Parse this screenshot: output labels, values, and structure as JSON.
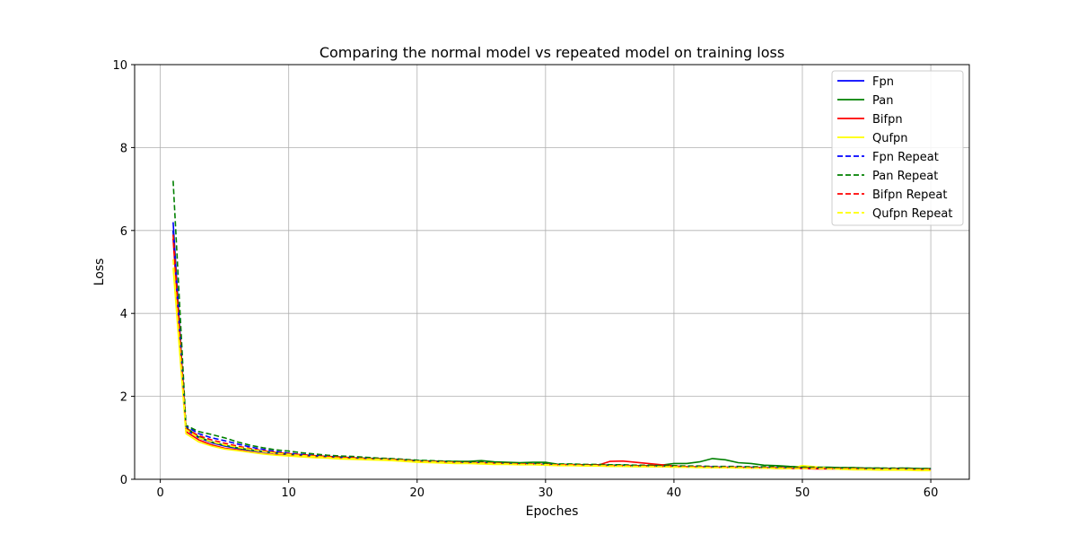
{
  "chart_data": {
    "type": "line",
    "title": "Comparing the normal model vs repeated model on training loss",
    "xlabel": "Epoches",
    "ylabel": "Loss",
    "xlim": [
      -2,
      63
    ],
    "ylim": [
      0,
      10
    ],
    "xticks": [
      0,
      10,
      20,
      30,
      40,
      50,
      60
    ],
    "yticks": [
      0,
      2,
      4,
      6,
      8,
      10
    ],
    "grid": true,
    "legend_position": "top-right",
    "x": [
      1,
      2,
      3,
      4,
      5,
      6,
      7,
      8,
      9,
      10,
      11,
      12,
      13,
      14,
      15,
      16,
      17,
      18,
      19,
      20,
      21,
      22,
      23,
      24,
      25,
      26,
      27,
      28,
      29,
      30,
      31,
      32,
      33,
      34,
      35,
      36,
      37,
      38,
      39,
      40,
      41,
      42,
      43,
      44,
      45,
      46,
      47,
      48,
      49,
      50,
      51,
      52,
      53,
      54,
      55,
      56,
      57,
      58,
      59,
      60
    ],
    "series": [
      {
        "name": "Fpn",
        "color": "#0000ff",
        "dash": "solid",
        "values": [
          6.2,
          1.2,
          1.0,
          0.88,
          0.8,
          0.75,
          0.7,
          0.66,
          0.63,
          0.6,
          0.58,
          0.56,
          0.54,
          0.52,
          0.51,
          0.5,
          0.49,
          0.48,
          0.46,
          0.44,
          0.43,
          0.42,
          0.41,
          0.4,
          0.4,
          0.39,
          0.38,
          0.37,
          0.37,
          0.36,
          0.35,
          0.35,
          0.34,
          0.34,
          0.33,
          0.33,
          0.32,
          0.32,
          0.31,
          0.31,
          0.3,
          0.3,
          0.3,
          0.29,
          0.29,
          0.29,
          0.28,
          0.28,
          0.28,
          0.27,
          0.27,
          0.27,
          0.26,
          0.26,
          0.26,
          0.26,
          0.25,
          0.25,
          0.25,
          0.25
        ]
      },
      {
        "name": "Pan",
        "color": "#008000",
        "dash": "solid",
        "values": [
          6.0,
          1.25,
          1.02,
          0.9,
          0.82,
          0.76,
          0.71,
          0.67,
          0.64,
          0.61,
          0.59,
          0.57,
          0.55,
          0.54,
          0.52,
          0.51,
          0.5,
          0.49,
          0.47,
          0.45,
          0.44,
          0.43,
          0.43,
          0.43,
          0.45,
          0.42,
          0.41,
          0.4,
          0.41,
          0.41,
          0.36,
          0.36,
          0.35,
          0.35,
          0.34,
          0.34,
          0.33,
          0.33,
          0.34,
          0.38,
          0.38,
          0.42,
          0.5,
          0.47,
          0.4,
          0.38,
          0.34,
          0.33,
          0.31,
          0.3,
          0.29,
          0.29,
          0.28,
          0.28,
          0.27,
          0.27,
          0.26,
          0.27,
          0.26,
          0.26
        ]
      },
      {
        "name": "Bifpn",
        "color": "#ff0000",
        "dash": "solid",
        "values": [
          5.8,
          1.15,
          0.95,
          0.83,
          0.75,
          0.71,
          0.66,
          0.62,
          0.59,
          0.57,
          0.55,
          0.53,
          0.52,
          0.5,
          0.49,
          0.48,
          0.47,
          0.46,
          0.44,
          0.42,
          0.41,
          0.4,
          0.4,
          0.39,
          0.39,
          0.38,
          0.37,
          0.36,
          0.36,
          0.35,
          0.34,
          0.34,
          0.33,
          0.33,
          0.43,
          0.44,
          0.41,
          0.38,
          0.35,
          0.32,
          0.3,
          0.29,
          0.28,
          0.28,
          0.28,
          0.27,
          0.27,
          0.26,
          0.26,
          0.26,
          0.25,
          0.25,
          0.25,
          0.24,
          0.24,
          0.24,
          0.24,
          0.23,
          0.23,
          0.23
        ]
      },
      {
        "name": "Qufpn",
        "color": "#ffff00",
        "dash": "solid",
        "values": [
          5.1,
          1.1,
          0.9,
          0.8,
          0.73,
          0.69,
          0.65,
          0.61,
          0.58,
          0.56,
          0.54,
          0.52,
          0.51,
          0.49,
          0.48,
          0.47,
          0.46,
          0.45,
          0.43,
          0.41,
          0.4,
          0.39,
          0.38,
          0.38,
          0.37,
          0.36,
          0.36,
          0.35,
          0.35,
          0.34,
          0.33,
          0.33,
          0.32,
          0.32,
          0.31,
          0.31,
          0.3,
          0.3,
          0.3,
          0.29,
          0.29,
          0.28,
          0.28,
          0.28,
          0.27,
          0.27,
          0.27,
          0.26,
          0.26,
          0.33,
          0.3,
          0.27,
          0.24,
          0.23,
          0.23,
          0.22,
          0.22,
          0.22,
          0.21,
          0.21
        ]
      },
      {
        "name": "Fpn Repeat",
        "color": "#0000ff",
        "dash": "dashed",
        "values": [
          6.0,
          1.28,
          1.1,
          1.0,
          0.93,
          0.85,
          0.78,
          0.72,
          0.67,
          0.63,
          0.6,
          0.58,
          0.56,
          0.54,
          0.53,
          0.51,
          0.5,
          0.49,
          0.47,
          0.45,
          0.44,
          0.43,
          0.42,
          0.41,
          0.41,
          0.4,
          0.39,
          0.38,
          0.38,
          0.37,
          0.36,
          0.36,
          0.35,
          0.35,
          0.34,
          0.34,
          0.33,
          0.33,
          0.32,
          0.32,
          0.31,
          0.31,
          0.3,
          0.3,
          0.3,
          0.29,
          0.29,
          0.29,
          0.28,
          0.28,
          0.28,
          0.27,
          0.27,
          0.27,
          0.26,
          0.26,
          0.26,
          0.26,
          0.25,
          0.25
        ]
      },
      {
        "name": "Pan Repeat",
        "color": "#008000",
        "dash": "dashed",
        "values": [
          7.2,
          1.3,
          1.15,
          1.08,
          1.0,
          0.9,
          0.82,
          0.76,
          0.71,
          0.68,
          0.64,
          0.61,
          0.58,
          0.56,
          0.55,
          0.53,
          0.51,
          0.5,
          0.48,
          0.46,
          0.45,
          0.44,
          0.43,
          0.42,
          0.42,
          0.41,
          0.4,
          0.39,
          0.39,
          0.38,
          0.37,
          0.37,
          0.36,
          0.36,
          0.35,
          0.35,
          0.34,
          0.34,
          0.33,
          0.33,
          0.32,
          0.32,
          0.31,
          0.31,
          0.31,
          0.3,
          0.3,
          0.3,
          0.29,
          0.29,
          0.29,
          0.28,
          0.28,
          0.28,
          0.27,
          0.27,
          0.27,
          0.27,
          0.26,
          0.26
        ]
      },
      {
        "name": "Bifpn Repeat",
        "color": "#ff0000",
        "dash": "dashed",
        "values": [
          5.9,
          1.22,
          1.05,
          0.95,
          0.87,
          0.8,
          0.74,
          0.69,
          0.65,
          0.62,
          0.59,
          0.57,
          0.55,
          0.53,
          0.52,
          0.5,
          0.49,
          0.48,
          0.46,
          0.44,
          0.43,
          0.42,
          0.41,
          0.4,
          0.4,
          0.39,
          0.38,
          0.37,
          0.37,
          0.36,
          0.35,
          0.35,
          0.34,
          0.34,
          0.33,
          0.33,
          0.32,
          0.32,
          0.31,
          0.31,
          0.3,
          0.3,
          0.29,
          0.29,
          0.29,
          0.28,
          0.28,
          0.28,
          0.27,
          0.27,
          0.27,
          0.26,
          0.26,
          0.26,
          0.25,
          0.25,
          0.25,
          0.25,
          0.24,
          0.24
        ]
      },
      {
        "name": "Qufpn Repeat",
        "color": "#ffff00",
        "dash": "dashed",
        "values": [
          5.3,
          1.2,
          1.0,
          0.9,
          0.83,
          0.77,
          0.72,
          0.67,
          0.63,
          0.6,
          0.57,
          0.55,
          0.53,
          0.51,
          0.5,
          0.49,
          0.48,
          0.47,
          0.45,
          0.43,
          0.42,
          0.41,
          0.4,
          0.39,
          0.39,
          0.38,
          0.37,
          0.36,
          0.36,
          0.35,
          0.34,
          0.34,
          0.33,
          0.33,
          0.32,
          0.32,
          0.31,
          0.31,
          0.3,
          0.3,
          0.29,
          0.29,
          0.28,
          0.28,
          0.28,
          0.27,
          0.27,
          0.27,
          0.26,
          0.26,
          0.26,
          0.25,
          0.25,
          0.25,
          0.24,
          0.24,
          0.24,
          0.24,
          0.23,
          0.23
        ]
      }
    ]
  }
}
